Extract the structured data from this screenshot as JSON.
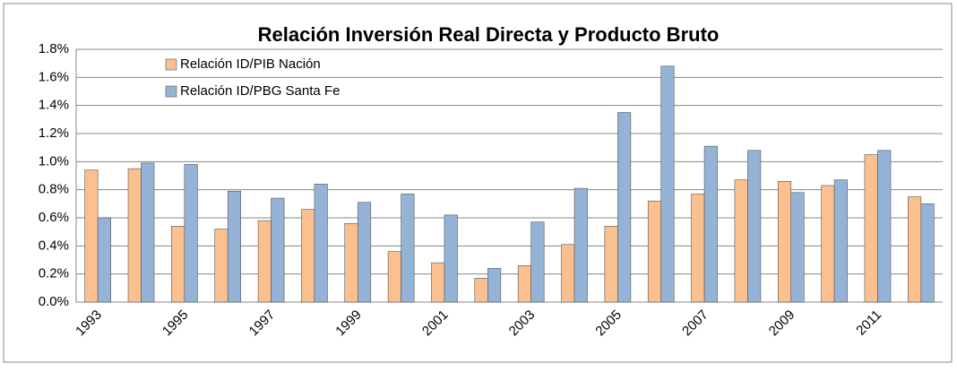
{
  "chart_data": {
    "type": "bar",
    "title": "Relación Inversión Real Directa y Producto Bruto",
    "categories": [
      "1993",
      null,
      "1995",
      null,
      "1997",
      null,
      "1999",
      null,
      "2001",
      null,
      "2003",
      null,
      "2005",
      null,
      "2007",
      null,
      "2009",
      null,
      "2011",
      null
    ],
    "series": [
      {
        "name": "Relación  ID/PIB Nación",
        "color": "#FAC090",
        "values": [
          0.94,
          0.95,
          0.54,
          0.52,
          0.58,
          0.66,
          0.56,
          0.36,
          0.28,
          0.17,
          0.26,
          0.41,
          0.54,
          0.72,
          0.77,
          0.87,
          0.86,
          0.83,
          1.05,
          0.75
        ]
      },
      {
        "name": "Relación ID/PBG Santa Fe",
        "color": "#95B3D7",
        "values": [
          0.6,
          0.99,
          0.98,
          0.79,
          0.74,
          0.84,
          0.71,
          0.77,
          0.62,
          0.24,
          0.57,
          0.81,
          1.35,
          1.68,
          1.11,
          1.08,
          0.78,
          0.87,
          1.08,
          0.7
        ]
      }
    ],
    "ylim": [
      0,
      1.8
    ],
    "yticks": [
      {
        "value": 0,
        "label": "0.0%"
      },
      {
        "value": 0.2,
        "label": "0.2%"
      },
      {
        "value": 0.4,
        "label": "0.4%"
      },
      {
        "value": 0.6,
        "label": "0.6%"
      },
      {
        "value": 0.8,
        "label": "0.8%"
      },
      {
        "value": 1.0,
        "label": "1.0%"
      },
      {
        "value": 1.2,
        "label": "1.2%"
      },
      {
        "value": 1.4,
        "label": "1.4%"
      },
      {
        "value": 1.6,
        "label": "1.6%"
      },
      {
        "value": 1.8,
        "label": "1.8%"
      }
    ],
    "grid": true,
    "legend": "top-left"
  }
}
